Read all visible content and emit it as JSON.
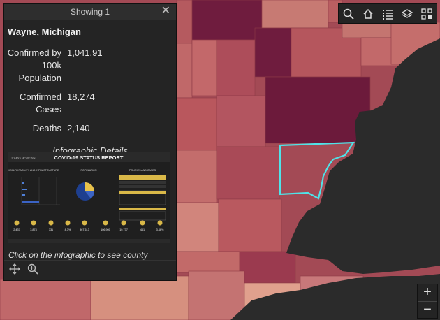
{
  "popup": {
    "header_title": "Showing 1",
    "county_title": "Wayne, Michigan",
    "attributes": [
      {
        "label": "Confirmed by 100k Population",
        "value": "1,041.91"
      },
      {
        "label": "Confirmed Cases",
        "value": "18,274"
      },
      {
        "label": "Deaths",
        "value": "2,140"
      }
    ],
    "infographic_heading": "Infographic Details",
    "infographic": {
      "header": "COVID-19 STATUS REPORT",
      "brand": "JOHNS HOPKINS",
      "sections": [
        "HEALTH FACILITY AND INFRASTRUCTURE",
        "POPULATION",
        "POLICIES AND CASES"
      ],
      "stats": [
        "2,437",
        "3,874",
        "331",
        "8.3%",
        "967,613",
        "106,900",
        "19,737",
        "461",
        "3.46%"
      ]
    },
    "click_note": "Click on the infographic to see county"
  },
  "icons": {
    "close": "close-icon",
    "move": "move-icon",
    "zoom_to": "zoom-to-icon",
    "search": "search-icon",
    "home": "home-icon",
    "list": "list-icon",
    "layers": "layers-icon",
    "qr": "qr-code-icon"
  },
  "colors": {
    "selection_outline": "#4fe3e8",
    "lake": "#2b2b2b",
    "panel": "#242424"
  }
}
